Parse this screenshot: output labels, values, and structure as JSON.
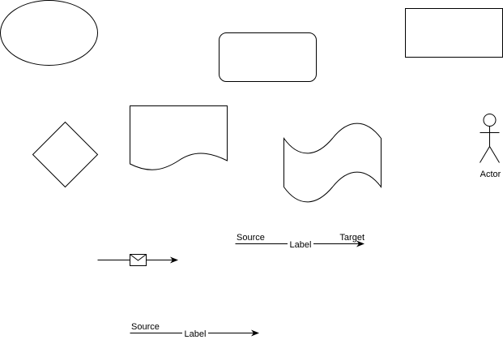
{
  "shapes": {
    "ellipse": {},
    "rounded_rectangle": {},
    "rectangle": {},
    "diamond": {},
    "document": {},
    "tape": {},
    "actor": {
      "label": "Actor"
    }
  },
  "connectors": {
    "message_flow": {
      "icon": "envelope-icon"
    },
    "labeled_edge_top": {
      "source": "Source",
      "label": "Label",
      "target": "Target"
    },
    "labeled_edge_bottom": {
      "source": "Source",
      "label": "Label"
    }
  }
}
